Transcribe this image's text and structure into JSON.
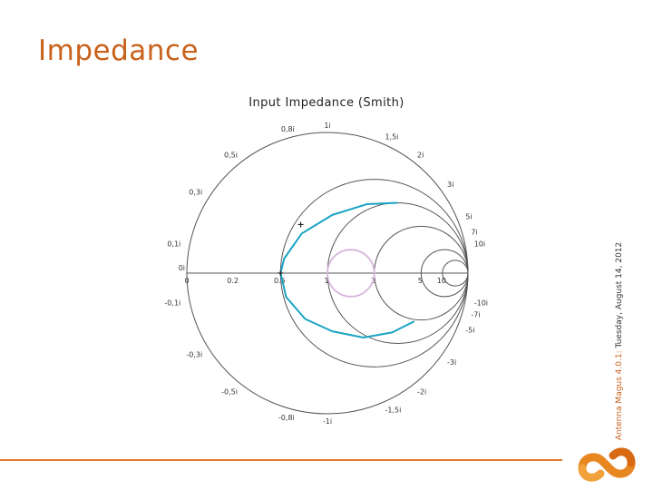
{
  "slide": {
    "title": "Impedance",
    "side_brand": "Antenna Magus 4.0.1:",
    "side_date": "Tuesday, August 14, 2012",
    "accent_color": "#e07a2a"
  },
  "chart_data": {
    "type": "smith",
    "title": "Input Impedance (Smith)",
    "resistance_circles": [
      0,
      0.5,
      1,
      2,
      5,
      10
    ],
    "resistance_labels": [
      "0",
      "0.2",
      "0.5",
      "1",
      "2",
      "5",
      "10"
    ],
    "reactance_labels_pos": [
      "0,1i",
      "0,3i",
      "0,5i",
      "0,8i",
      "1i",
      "1,5i",
      "2i",
      "3i",
      "5i",
      "7i",
      "10i"
    ],
    "reactance_labels_neg": [
      "-0,1i",
      "-0,3i",
      "-0,5i",
      "-0,8i",
      "-1i",
      "-1,5i",
      "-2i",
      "-3i",
      "-5i",
      "-7i",
      "-10i"
    ],
    "center_label": "0i",
    "series": [
      {
        "color": "#1aa3c4",
        "points": [
          {
            "r": 1.0,
            "x": 2.0
          },
          {
            "r": 0.9,
            "x": 1.3
          },
          {
            "r": 0.75,
            "x": 0.75
          },
          {
            "r": 0.6,
            "x": 0.38
          },
          {
            "r": 0.52,
            "x": 0.12
          },
          {
            "r": 0.5,
            "x": 0.0
          },
          {
            "r": 0.52,
            "x": -0.2
          },
          {
            "r": 0.6,
            "x": -0.45
          },
          {
            "r": 0.75,
            "x": -0.75
          },
          {
            "r": 0.95,
            "x": -1.2
          },
          {
            "r": 1.3,
            "x": -1.8
          },
          {
            "r": 1.9,
            "x": -2.6
          }
        ]
      },
      {
        "color": "#d6b4dc",
        "curve": "circle",
        "r_min": 1.0,
        "r_max": 2.0
      }
    ],
    "markers": [
      {
        "r": 0.55,
        "x": 0.45
      },
      {
        "r": 0.5,
        "x": 0.0
      }
    ]
  }
}
